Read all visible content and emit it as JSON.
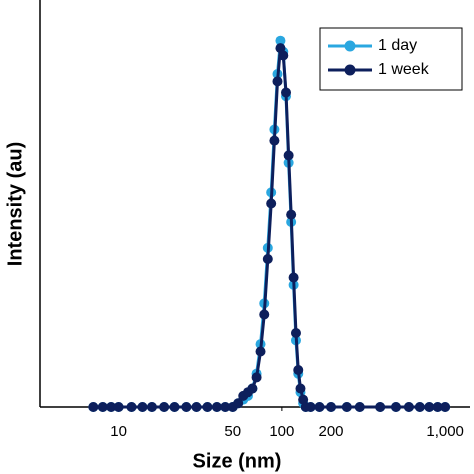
{
  "chart_data": {
    "type": "line",
    "xlabel": "Size (nm)",
    "ylabel": "Intensity (au)",
    "x": [
      7,
      8,
      9,
      10,
      12,
      14,
      16,
      19,
      22,
      26,
      30,
      35,
      40,
      45,
      50,
      54,
      58,
      62,
      66,
      70,
      74,
      78,
      82,
      86,
      90,
      94,
      98,
      102,
      106,
      110,
      114,
      118,
      122,
      126,
      130,
      135,
      140,
      150,
      170,
      200,
      250,
      300,
      400,
      500,
      600,
      700,
      800,
      900,
      1000
    ],
    "series": [
      {
        "name": "1 day",
        "color": "#2aa7e0",
        "values": [
          0,
          0,
          0,
          0,
          0,
          0,
          0,
          0,
          0,
          0,
          0,
          0,
          0,
          0,
          0,
          1,
          2,
          3,
          5,
          9,
          17,
          28,
          43,
          58,
          75,
          90,
          99,
          96,
          84,
          66,
          50,
          33,
          18,
          9,
          4,
          1,
          0,
          0,
          0,
          0,
          0,
          0,
          0,
          0,
          0,
          0,
          0,
          0,
          0
        ]
      },
      {
        "name": "1 week",
        "color": "#0d1f5c",
        "values": [
          0,
          0,
          0,
          0,
          0,
          0,
          0,
          0,
          0,
          0,
          0,
          0,
          0,
          0,
          0,
          1,
          3,
          4,
          5,
          8,
          15,
          25,
          40,
          55,
          72,
          88,
          97,
          95,
          85,
          68,
          52,
          35,
          20,
          10,
          5,
          2,
          0,
          0,
          0,
          0,
          0,
          0,
          0,
          0,
          0,
          0,
          0,
          0,
          0
        ]
      }
    ],
    "xscale": "log",
    "xlim": [
      3.3,
      1420
    ],
    "xticks": [
      10,
      50,
      100,
      200,
      {
        "value": 1000,
        "label": "1,000"
      }
    ],
    "ylim": [
      0,
      110
    ],
    "legend": "upper right"
  }
}
